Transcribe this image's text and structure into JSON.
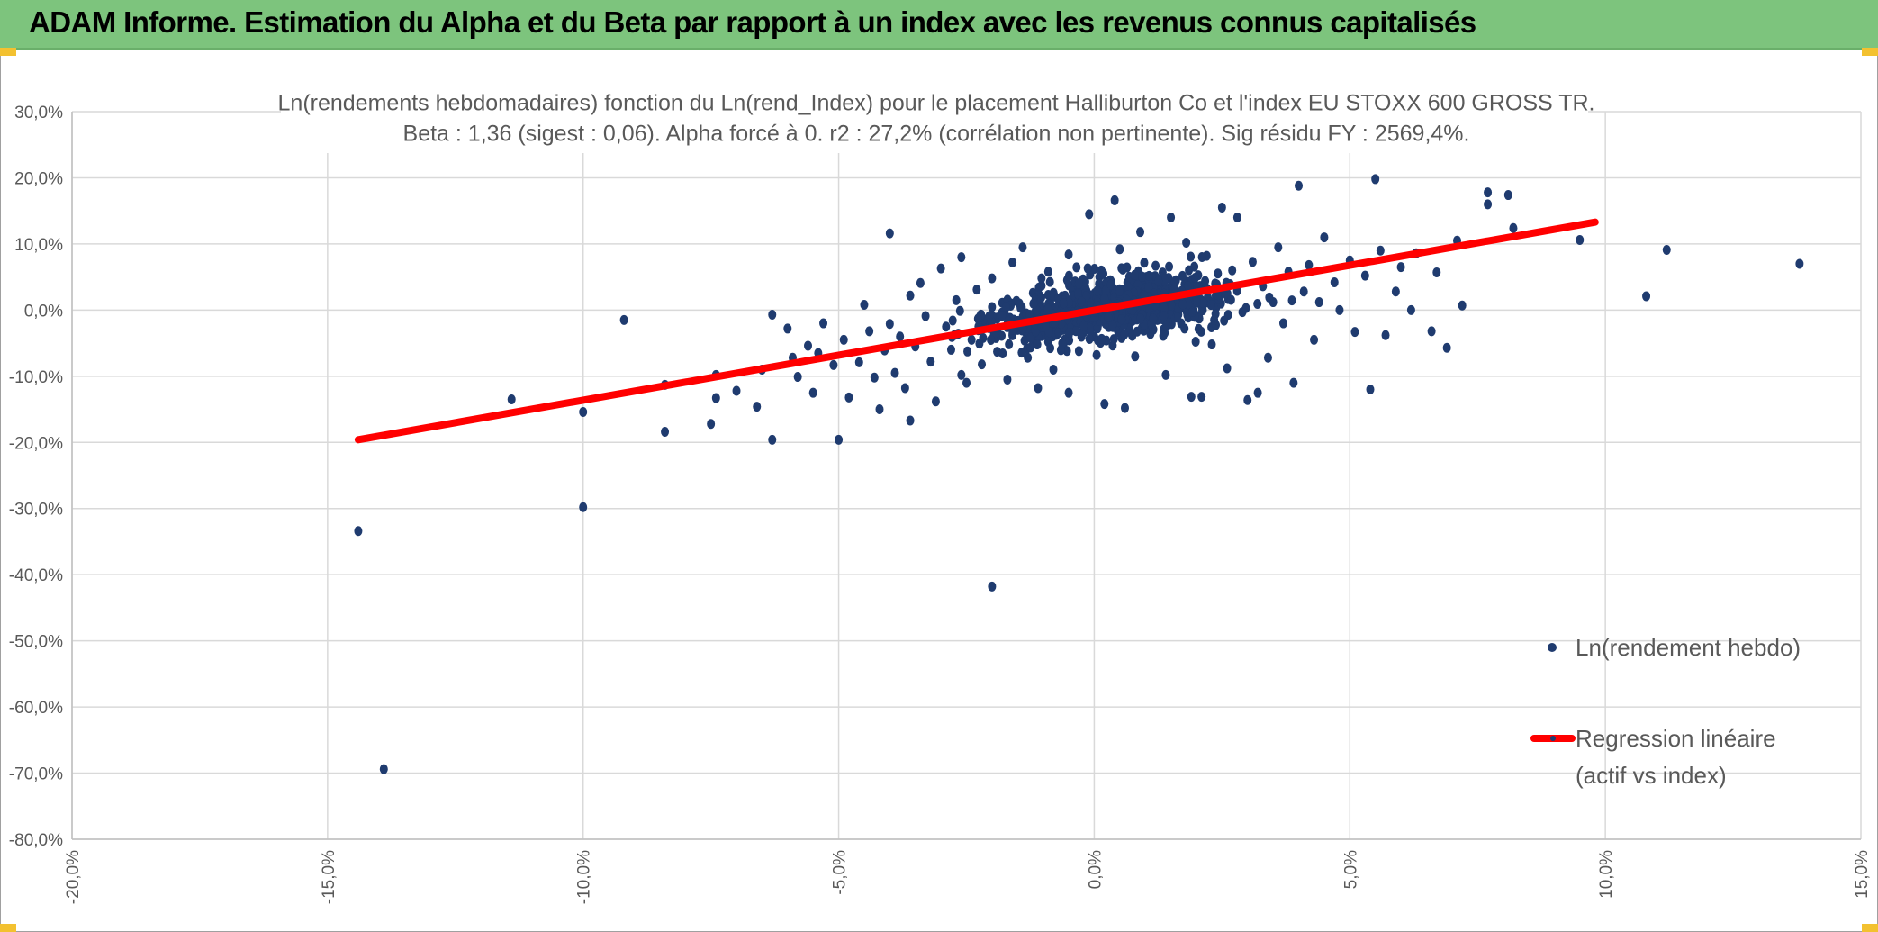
{
  "header": {
    "title": "ADAM Informe. Estimation du Alpha et du Beta par rapport à un index avec les revenus connus capitalisés"
  },
  "colors": {
    "header_bg": "#7dc47d",
    "corner_marker": "#f3c130",
    "points": "#1f3b6f",
    "regression": "#ff0000",
    "gridline": "#d9d9d9",
    "text": "#595959"
  },
  "chart_data": {
    "type": "scatter",
    "title": "Ln(rendements hebdomadaires) fonction du Ln(rend_Index) pour le placement Halliburton Co et l'index EU STOXX 600 GROSS TR.",
    "subtitle": "Beta : 1,36 (sigest : 0,06). Alpha forcé à 0. r2 : 27,2% (corrélation non pertinente). Sig résidu FY : 2569,4%.",
    "xlabel": "",
    "ylabel": "",
    "xlim": [
      -0.2,
      0.15
    ],
    "ylim": [
      -0.8,
      0.3
    ],
    "grid": true,
    "x_tick_labels": [
      "-20,0%",
      "-15,0%",
      "-10,0%",
      "-5,0%",
      "0,0%",
      "5,0%",
      "10,0%",
      "15,0%"
    ],
    "y_tick_labels": [
      "30,0%",
      "20,0%",
      "10,0%",
      "0,0%",
      "-10,0%",
      "-20,0%",
      "-30,0%",
      "-40,0%",
      "-50,0%",
      "-60,0%",
      "-70,0%",
      "-80,0%"
    ],
    "legend_position": "right",
    "series": [
      {
        "name": "Ln(rendement hebdo)",
        "kind": "points",
        "note_cloud": "dense cluster of ~1000 weekly returns around the origin, shown approximately",
        "points": [
          [
            -0.144,
            -0.334
          ],
          [
            -0.139,
            -0.694
          ],
          [
            -0.114,
            -0.135
          ],
          [
            -0.1,
            -0.154
          ],
          [
            -0.1,
            -0.298
          ],
          [
            -0.092,
            -0.015
          ],
          [
            -0.084,
            -0.113
          ],
          [
            -0.084,
            -0.184
          ],
          [
            -0.075,
            -0.172
          ],
          [
            -0.074,
            -0.133
          ],
          [
            -0.074,
            -0.098
          ],
          [
            -0.07,
            -0.122
          ],
          [
            -0.066,
            -0.146
          ],
          [
            -0.065,
            -0.09
          ],
          [
            -0.063,
            -0.196
          ],
          [
            -0.063,
            -0.007
          ],
          [
            -0.06,
            -0.028
          ],
          [
            -0.059,
            -0.072
          ],
          [
            -0.058,
            -0.101
          ],
          [
            -0.056,
            -0.054
          ],
          [
            -0.055,
            -0.125
          ],
          [
            -0.054,
            -0.065
          ],
          [
            -0.053,
            -0.02
          ],
          [
            -0.051,
            -0.083
          ],
          [
            -0.05,
            -0.196
          ],
          [
            -0.049,
            -0.045
          ],
          [
            -0.048,
            -0.132
          ],
          [
            -0.046,
            -0.079
          ],
          [
            -0.045,
            0.008
          ],
          [
            -0.044,
            -0.032
          ],
          [
            -0.043,
            -0.102
          ],
          [
            -0.042,
            -0.15
          ],
          [
            -0.041,
            -0.061
          ],
          [
            -0.04,
            0.116
          ],
          [
            -0.04,
            -0.021
          ],
          [
            -0.039,
            -0.095
          ],
          [
            -0.038,
            -0.04
          ],
          [
            -0.037,
            -0.118
          ],
          [
            -0.036,
            0.022
          ],
          [
            -0.036,
            -0.167
          ],
          [
            -0.035,
            -0.055
          ],
          [
            -0.034,
            0.041
          ],
          [
            -0.033,
            -0.009
          ],
          [
            -0.032,
            -0.078
          ],
          [
            -0.031,
            -0.138
          ],
          [
            -0.03,
            0.063
          ],
          [
            -0.029,
            -0.025
          ],
          [
            -0.028,
            -0.06
          ],
          [
            -0.027,
            0.015
          ],
          [
            -0.026,
            -0.098
          ],
          [
            -0.026,
            0.08
          ],
          [
            -0.025,
            -0.11
          ],
          [
            -0.024,
            -0.045
          ],
          [
            -0.023,
            0.031
          ],
          [
            -0.022,
            -0.082
          ],
          [
            -0.021,
            -0.017
          ],
          [
            -0.02,
            0.048
          ],
          [
            -0.02,
            -0.418
          ],
          [
            -0.019,
            -0.063
          ],
          [
            -0.018,
            0.011
          ],
          [
            -0.017,
            -0.105
          ],
          [
            -0.016,
            0.072
          ],
          [
            -0.015,
            -0.03
          ],
          [
            -0.014,
            0.095
          ],
          [
            -0.013,
            -0.072
          ],
          [
            -0.012,
            0.026
          ],
          [
            -0.011,
            -0.118
          ],
          [
            -0.01,
            -0.004
          ],
          [
            -0.009,
            0.058
          ],
          [
            -0.009,
            -0.048
          ],
          [
            -0.008,
            -0.09
          ],
          [
            -0.007,
            0.016
          ],
          [
            -0.006,
            -0.026
          ],
          [
            -0.005,
            0.084
          ],
          [
            -0.005,
            -0.125
          ],
          [
            -0.004,
            0.038
          ],
          [
            -0.003,
            -0.062
          ],
          [
            -0.002,
            0.006
          ],
          [
            -0.001,
            0.145
          ],
          [
            0.0,
            -0.04
          ],
          [
            0.001,
            0.05
          ],
          [
            0.002,
            -0.142
          ],
          [
            0.003,
            0.022
          ],
          [
            0.004,
            0.166
          ],
          [
            0.004,
            -0.015
          ],
          [
            0.005,
            0.092
          ],
          [
            0.006,
            -0.148
          ],
          [
            0.007,
            0.031
          ],
          [
            0.008,
            -0.07
          ],
          [
            0.009,
            0.118
          ],
          [
            0.01,
            0.0
          ],
          [
            0.011,
            -0.036
          ],
          [
            0.012,
            0.067
          ],
          [
            0.013,
            0.012
          ],
          [
            0.014,
            -0.098
          ],
          [
            0.015,
            0.14
          ],
          [
            0.016,
            0.045
          ],
          [
            0.017,
            -0.02
          ],
          [
            0.018,
            0.102
          ],
          [
            0.019,
            -0.131
          ],
          [
            0.02,
            0.025
          ],
          [
            0.021,
            -0.131
          ],
          [
            0.022,
            0.082
          ],
          [
            0.023,
            -0.052
          ],
          [
            0.024,
            0.01
          ],
          [
            0.025,
            0.155
          ],
          [
            0.026,
            -0.088
          ],
          [
            0.027,
            0.06
          ],
          [
            0.028,
            0.14
          ],
          [
            0.029,
            -0.003
          ],
          [
            0.03,
            -0.136
          ],
          [
            0.031,
            0.073
          ],
          [
            0.032,
            -0.125
          ],
          [
            0.033,
            0.036
          ],
          [
            0.034,
            -0.072
          ],
          [
            0.035,
            0.012
          ],
          [
            0.036,
            0.095
          ],
          [
            0.037,
            -0.02
          ],
          [
            0.038,
            0.058
          ],
          [
            0.039,
            -0.11
          ],
          [
            0.04,
            0.188
          ],
          [
            0.041,
            0.028
          ],
          [
            0.042,
            0.068
          ],
          [
            0.043,
            -0.045
          ],
          [
            0.044,
            0.012
          ],
          [
            0.045,
            0.11
          ],
          [
            0.047,
            0.042
          ],
          [
            0.048,
            0.0
          ],
          [
            0.05,
            0.075
          ],
          [
            0.051,
            -0.033
          ],
          [
            0.053,
            0.052
          ],
          [
            0.054,
            -0.12
          ],
          [
            0.055,
            0.198
          ],
          [
            0.056,
            0.09
          ],
          [
            0.057,
            -0.038
          ],
          [
            0.059,
            0.028
          ],
          [
            0.06,
            0.065
          ],
          [
            0.062,
            0.0
          ],
          [
            0.063,
            0.086
          ],
          [
            0.066,
            -0.032
          ],
          [
            0.067,
            0.057
          ],
          [
            0.069,
            -0.057
          ],
          [
            0.071,
            0.105
          ],
          [
            0.072,
            0.007
          ],
          [
            0.077,
            0.16
          ],
          [
            0.077,
            0.178
          ],
          [
            0.081,
            0.174
          ],
          [
            0.082,
            0.124
          ],
          [
            0.095,
            0.106
          ],
          [
            0.108,
            0.021
          ],
          [
            0.112,
            0.091
          ],
          [
            0.138,
            0.07
          ]
        ]
      },
      {
        "name": "Regression linéaire (actif vs index)",
        "kind": "line",
        "legend_lines": [
          "Regression linéaire",
          "(actif vs index)"
        ],
        "points": [
          [
            -0.144,
            -0.196
          ],
          [
            0.098,
            0.133
          ]
        ]
      }
    ]
  }
}
